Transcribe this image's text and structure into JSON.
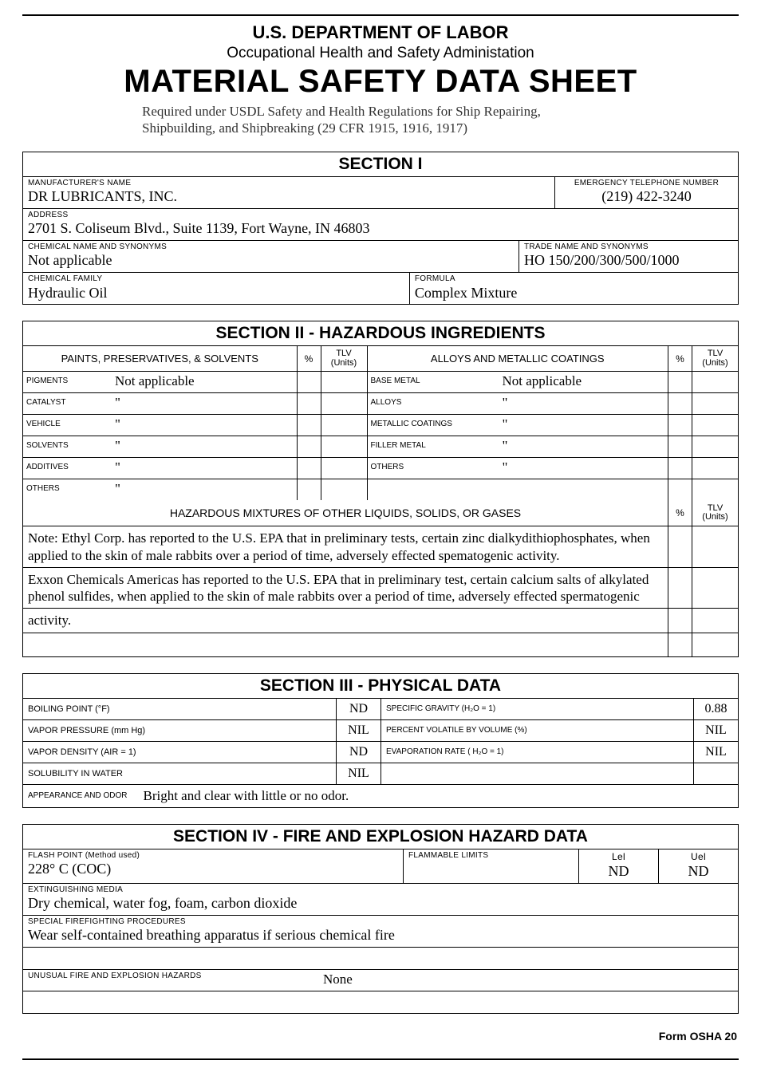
{
  "header": {
    "dept": "U.S. DEPARTMENT OF LABOR",
    "osha": "Occupational Health and Safety Administation",
    "title": "MATERIAL SAFETY DATA SHEET",
    "required_line1": "Required under USDL Safety and Health Regulations for Ship Repairing,",
    "required_line2": "Shipbuilding, and Shipbreaking (29 CFR 1915, 1916, 1917)"
  },
  "section1": {
    "title": "SECTION I",
    "manufacturer_label": "MANUFACTURER'S NAME",
    "manufacturer": "DR LUBRICANTS, INC.",
    "emergency_phone_label": "EMERGENCY TELEPHONE NUMBER",
    "emergency_phone": "(219) 422-3240",
    "address_label": "ADDRESS",
    "address": "2701 S. Coliseum Blvd., Suite 1139, Fort Wayne, IN 46803",
    "chem_name_label": "CHEMICAL NAME AND SYNONYMS",
    "chem_name": "Not applicable",
    "trade_name_label": "TRADE NAME AND SYNONYMS",
    "trade_name": "HO   150/200/300/500/1000",
    "chem_family_label": "CHEMICAL FAMILY",
    "chem_family": "Hydraulic Oil",
    "formula_label": "FORMULA",
    "formula": "Complex Mixture"
  },
  "section2": {
    "title": "SECTION II - HAZARDOUS INGREDIENTS",
    "left_header": "PAINTS, PRESERVATIVES, & SOLVENTS",
    "right_header": "ALLOYS  AND METALLIC COATINGS",
    "pct": "%",
    "tlv": "TLV (Units)",
    "left_rows": [
      {
        "label": "PIGMENTS",
        "value": "Not applicable"
      },
      {
        "label": "CATALYST",
        "value": "\""
      },
      {
        "label": "VEHICLE",
        "value": "\""
      },
      {
        "label": "SOLVENTS",
        "value": "\""
      },
      {
        "label": "ADDITIVES",
        "value": "\""
      },
      {
        "label": "OTHERS",
        "value": "\""
      }
    ],
    "right_rows": [
      {
        "label": "BASE METAL",
        "value": "Not applicable"
      },
      {
        "label": "ALLOYS",
        "value": "\""
      },
      {
        "label": "METALLIC COATINGS",
        "value": "\""
      },
      {
        "label": "FILLER METAL",
        "value": "\""
      },
      {
        "label": "OTHERS",
        "value": "\""
      },
      {
        "label": "",
        "value": ""
      }
    ],
    "mix_title": "HAZARDOUS MIXTURES OF OTHER LIQUIDS, SOLIDS, OR GASES",
    "notes": [
      "Note: Ethyl Corp. has reported to the U.S. EPA that in preliminary tests, certain zinc dialkydithiophosphates, when applied to the skin of male rabbits over a period of time, adversely effected spematogenic activity.",
      "Exxon Chemicals Americas has reported to the U.S. EPA that in preliminary test, certain calcium salts of alkylated phenol sulfides, when applied to the skin of male rabbits over a period of time, adversely effected spermatogenic",
      "activity.",
      ""
    ]
  },
  "section3": {
    "title": "SECTION III - PHYSICAL DATA",
    "rows": [
      {
        "l_label": "BOILING POINT (°F)",
        "l_val": "ND",
        "r_label": "SPECIFIC GRAVITY (H₂O = 1)",
        "r_val": "0.88"
      },
      {
        "l_label": "VAPOR PRESSURE (mm Hg)",
        "l_val": "NIL",
        "r_label": "PERCENT VOLATILE BY VOLUME (%)",
        "r_val": "NIL"
      },
      {
        "l_label": "VAPOR DENSITY (AIR = 1)",
        "l_val": "ND",
        "r_label": "EVAPORATION RATE ( H₂O = 1)",
        "r_val": "NIL"
      },
      {
        "l_label": "SOLUBILITY IN WATER",
        "l_val": "NIL",
        "r_label": "",
        "r_val": ""
      }
    ],
    "appearance_label": "APPEARANCE AND ODOR",
    "appearance": "Bright and clear with little or no odor."
  },
  "section4": {
    "title": "SECTION IV - FIRE AND EXPLOSION HAZARD DATA",
    "flash_label": "FLASH POINT (Method used)",
    "flash_val": "228° C  (COC)",
    "flammable_label": "FLAMMABLE LIMITS",
    "lel_label": "Lel",
    "lel_val": "ND",
    "uel_label": "Uel",
    "uel_val": "ND",
    "exting_label": "EXTINGUISHING MEDIA",
    "exting_val": "Dry chemical, water fog, foam, carbon dioxide",
    "special_label": "SPECIAL FIREFIGHTING PROCEDURES",
    "special_val": "Wear self-contained breathing apparatus if serious chemical fire",
    "unusual_label": "UNUSUAL FIRE AND EXPLOSION HAZARDS",
    "unusual_val": "None"
  },
  "form_id": "Form OSHA 20"
}
